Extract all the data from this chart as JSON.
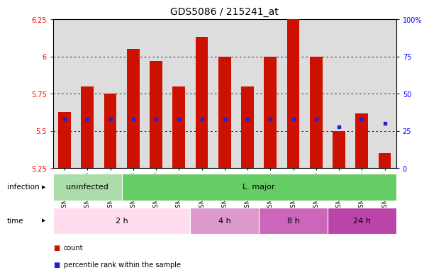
{
  "title": "GDS5086 / 215241_at",
  "samples": [
    "GSM1032235",
    "GSM1032236",
    "GSM1032237",
    "GSM1032238",
    "GSM1032239",
    "GSM1032240",
    "GSM1032241",
    "GSM1032242",
    "GSM1032243",
    "GSM1032244",
    "GSM1032245",
    "GSM1032246",
    "GSM1032247",
    "GSM1032248",
    "GSM1032249"
  ],
  "bar_tops": [
    5.63,
    5.8,
    5.75,
    6.05,
    5.97,
    5.8,
    6.13,
    6.0,
    5.8,
    6.0,
    6.25,
    6.0,
    5.5,
    5.62,
    5.35
  ],
  "blue_y": [
    5.58,
    5.58,
    5.58,
    5.58,
    5.58,
    5.58,
    5.58,
    5.58,
    5.58,
    5.58,
    5.58,
    5.58,
    5.53,
    5.58,
    5.55
  ],
  "bar_bottom": 5.25,
  "ylim_left": [
    5.25,
    6.25
  ],
  "ylim_right": [
    0,
    100
  ],
  "yticks_left": [
    5.25,
    5.5,
    5.75,
    6.0,
    6.25
  ],
  "yticks_right": [
    0,
    25,
    50,
    75,
    100
  ],
  "ytick_labels_left": [
    "5.25",
    "5.5",
    "5.75",
    "6",
    "6.25"
  ],
  "ytick_labels_right": [
    "0",
    "25",
    "50",
    "75",
    "100%"
  ],
  "bar_color": "#cc1100",
  "blue_color": "#2222cc",
  "plot_bg": "#dddddd",
  "infection_groups": [
    {
      "label": "uninfected",
      "start": 0,
      "end": 3,
      "color": "#aaddaa"
    },
    {
      "label": "L. major",
      "start": 3,
      "end": 15,
      "color": "#66cc66"
    }
  ],
  "time_colors": [
    "#ffddee",
    "#dd99cc",
    "#cc66bb",
    "#bb44aa"
  ],
  "time_groups": [
    {
      "label": "2 h",
      "start": 0,
      "end": 6
    },
    {
      "label": "4 h",
      "start": 6,
      "end": 9
    },
    {
      "label": "8 h",
      "start": 9,
      "end": 12
    },
    {
      "label": "24 h",
      "start": 12,
      "end": 15
    }
  ],
  "legend_count_color": "#cc1100",
  "legend_pct_color": "#2222cc",
  "title_fontsize": 10,
  "tick_fontsize": 7,
  "sample_fontsize": 6,
  "row_fontsize": 8
}
